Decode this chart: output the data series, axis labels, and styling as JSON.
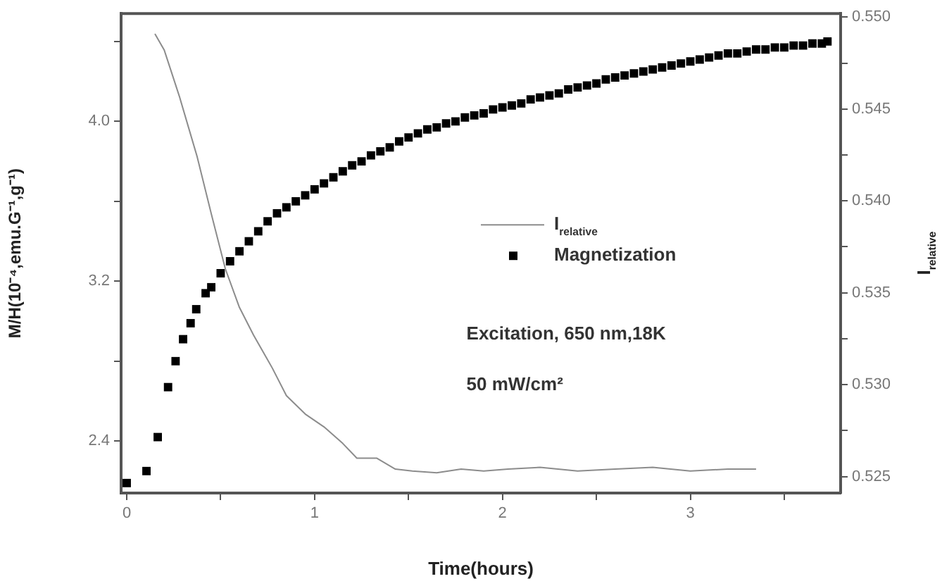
{
  "chart_data": {
    "type": "scatter",
    "xlabel": "Time(hours)",
    "ylabel": "M/H(10⁻⁴,emu.G⁻¹,g⁻¹)",
    "y2label": "I$_{relative}$",
    "xlim": [
      -0.03,
      3.8
    ],
    "xticks": [
      0,
      {
        "value": 0.5,
        "label": null
      },
      1,
      {
        "value": 1.5,
        "label": null
      },
      2,
      {
        "value": 2.5,
        "label": null
      },
      3,
      {
        "value": 3.5,
        "label": null
      }
    ],
    "ylim": [
      2.14,
      4.54
    ],
    "yticks": [
      2.4,
      {
        "value": 2.8,
        "label": null
      },
      3.2,
      {
        "value": 3.6,
        "label": null
      },
      {
        "value": 4,
        "label": "4.0"
      },
      {
        "value": 4.4,
        "label": null
      }
    ],
    "y2lim": [
      0.5241,
      0.5502
    ],
    "y2ticks": [
      0.525,
      {
        "value": 0.5275,
        "label": null
      },
      {
        "value": 0.53,
        "label": "0.530"
      },
      {
        "value": 0.5325,
        "label": null
      },
      0.535,
      {
        "value": 0.5375,
        "label": null
      },
      {
        "value": 0.54,
        "label": "0.540"
      },
      {
        "value": 0.5425,
        "label": null
      },
      0.545,
      {
        "value": 0.5475,
        "label": null
      },
      {
        "value": 0.55,
        "label": "0.550"
      }
    ],
    "legend": "right",
    "grid": false,
    "annotations": [
      "Excitation, 650 nm,18K",
      "50 mW/cm²"
    ],
    "series": [
      {
        "name": "I$_{relative}$",
        "type": "line",
        "axis": "y2",
        "color": "#8c8c8c",
        "marker": "none",
        "line_style": "solid",
        "x": [
          0.15,
          0.2,
          0.28,
          0.375,
          0.45,
          0.525,
          0.6,
          0.675,
          0.775,
          0.85,
          0.95,
          1.05,
          1.15,
          1.225,
          1.33,
          1.43,
          1.52,
          1.65,
          1.78,
          1.9,
          2.03,
          2.2,
          2.4,
          2.6,
          2.8,
          3.0,
          3.2,
          3.35
        ],
        "values": [
          0.5491,
          0.5482,
          0.5457,
          0.5424,
          0.5393,
          0.5363,
          0.5342,
          0.5327,
          0.5309,
          0.5294,
          0.5284,
          0.5277,
          0.5268,
          0.526,
          0.526,
          0.5254,
          0.5253,
          0.5252,
          0.5254,
          0.5253,
          0.5254,
          0.5255,
          0.5253,
          0.5254,
          0.5255,
          0.5253,
          0.5254,
          0.5254
        ]
      },
      {
        "name": "Magnetization",
        "type": "scatter",
        "axis": "y",
        "color": "#000000",
        "marker": "square",
        "x": [
          0,
          0.105,
          0.165,
          0.22,
          0.26,
          0.3,
          0.34,
          0.37,
          0.42,
          0.45,
          0.5,
          0.55,
          0.6,
          0.65,
          0.7,
          0.75,
          0.8,
          0.85,
          0.9,
          0.95,
          1.0,
          1.05,
          1.1,
          1.15,
          1.2,
          1.25,
          1.3,
          1.35,
          1.4,
          1.45,
          1.5,
          1.55,
          1.6,
          1.65,
          1.7,
          1.75,
          1.8,
          1.85,
          1.9,
          1.95,
          2.0,
          2.05,
          2.1,
          2.15,
          2.2,
          2.25,
          2.3,
          2.35,
          2.4,
          2.45,
          2.5,
          2.55,
          2.6,
          2.65,
          2.7,
          2.75,
          2.8,
          2.85,
          2.9,
          2.95,
          3.0,
          3.05,
          3.1,
          3.15,
          3.2,
          3.25,
          3.3,
          3.35,
          3.4,
          3.45,
          3.5,
          3.55,
          3.6,
          3.65,
          3.7,
          3.73
        ],
        "values": [
          2.19,
          2.25,
          2.42,
          2.67,
          2.8,
          2.91,
          2.99,
          3.06,
          3.14,
          3.17,
          3.24,
          3.3,
          3.35,
          3.4,
          3.45,
          3.5,
          3.54,
          3.57,
          3.6,
          3.63,
          3.66,
          3.69,
          3.72,
          3.75,
          3.78,
          3.8,
          3.83,
          3.85,
          3.87,
          3.9,
          3.92,
          3.94,
          3.96,
          3.97,
          3.99,
          4.0,
          4.02,
          4.03,
          4.04,
          4.06,
          4.07,
          4.08,
          4.09,
          4.11,
          4.12,
          4.13,
          4.14,
          4.16,
          4.17,
          4.18,
          4.19,
          4.21,
          4.22,
          4.23,
          4.24,
          4.25,
          4.26,
          4.27,
          4.28,
          4.29,
          4.3,
          4.31,
          4.32,
          4.33,
          4.34,
          4.34,
          4.35,
          4.36,
          4.36,
          4.37,
          4.37,
          4.38,
          4.38,
          4.39,
          4.39,
          4.4
        ]
      }
    ]
  }
}
